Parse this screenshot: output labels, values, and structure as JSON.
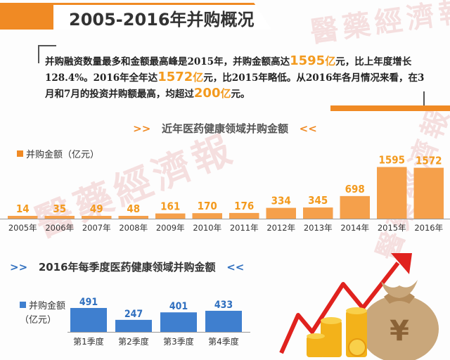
{
  "header": {
    "title": "2005-2016年并购概况"
  },
  "intro": {
    "p1": "并购融资数量最多和金额最高峰是2015年，并购金额高达",
    "h1": "1595",
    "u1": "亿",
    "p2": "元，比上年度增长128.4%。2016年全年达",
    "h2": "1572",
    "u2": "亿",
    "p3": "元，比2015年略低。从2016年各月情况来看，在3月和7月的投资并购额最高，均超过",
    "h3": "200",
    "u3": "亿",
    "p4": "元。"
  },
  "watermark": "醫藥經濟報",
  "colors": {
    "orange": "#f08a24",
    "orange_light": "#f5a04b",
    "blue": "#3f7fcf",
    "label_orange": "#f39a1e",
    "label_blue": "#2f6fbf"
  },
  "chart_data": [
    {
      "type": "bar",
      "title": "近年医药健康领域并购金额",
      "title_prefix": ">>",
      "title_suffix": "<<",
      "legend": "并购金额（亿元）",
      "categories": [
        "2005年",
        "2006年",
        "2007年",
        "2008年",
        "2009年",
        "2010年",
        "2011年",
        "2012年",
        "2013年",
        "2014年",
        "2015年",
        "2016年"
      ],
      "series": [
        {
          "name": "并购金额（亿元）",
          "values": [
            14,
            35,
            49,
            48,
            161,
            170,
            176,
            334,
            345,
            698,
            1595,
            1572
          ]
        }
      ],
      "ylim": [
        0,
        1650
      ]
    },
    {
      "type": "bar",
      "title": "2016年每季度医药健康领域并购金额",
      "title_prefix": ">>",
      "title_suffix": "<<",
      "legend": [
        "并购金额",
        "（亿元）"
      ],
      "categories": [
        "第1季度",
        "第2季度",
        "第3季度",
        "第4季度"
      ],
      "series": [
        {
          "name": "并购金额（亿元）",
          "values": [
            491,
            247,
            401,
            433
          ]
        }
      ],
      "ylim": [
        0,
        520
      ]
    }
  ],
  "illustration": {
    "currency_symbol": "¥"
  }
}
